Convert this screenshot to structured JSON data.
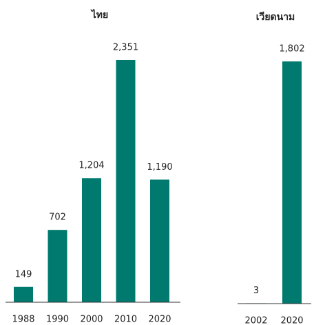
{
  "chart_data": [
    {
      "type": "bar",
      "title": "ไทย",
      "categories": [
        "1988",
        "1990",
        "2000",
        "2010",
        "2020"
      ],
      "values": [
        149,
        702,
        1204,
        2351,
        1190
      ],
      "value_labels": [
        "149",
        "702",
        "1,204",
        "2,351",
        "1,190"
      ],
      "color": "#007a6e"
    },
    {
      "type": "bar",
      "title": "เวียดนาม",
      "categories": [
        "2002",
        "2020"
      ],
      "values": [
        3,
        1802
      ],
      "value_labels": [
        "3",
        "1,802"
      ],
      "color": "#007a6e"
    }
  ]
}
